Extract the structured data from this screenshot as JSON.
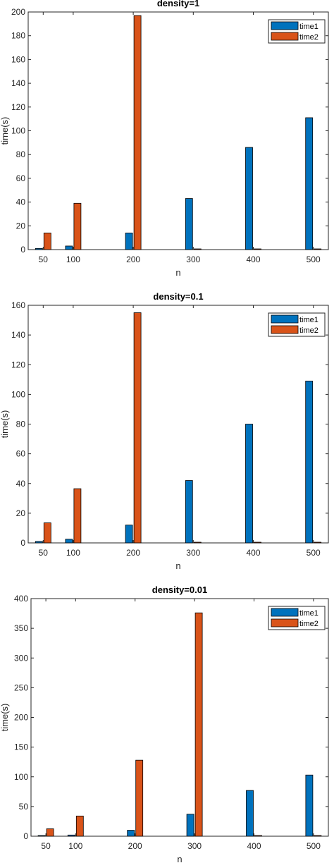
{
  "chart_data": [
    {
      "type": "bar",
      "title": "density=1",
      "xlabel": "n",
      "ylabel": "time(s)",
      "x": [
        50,
        100,
        200,
        300,
        400,
        500
      ],
      "categories": [
        "50",
        "100",
        "200",
        "300",
        "400",
        "500"
      ],
      "xlim": [
        25,
        525
      ],
      "ylim": [
        0,
        200
      ],
      "yticks": [
        0,
        20,
        40,
        60,
        80,
        100,
        120,
        140,
        160,
        180,
        200
      ],
      "legend_position": "top-right",
      "series": [
        {
          "name": "time1",
          "color": "#0072BD",
          "values": [
            1,
            3,
            14,
            43,
            86,
            111
          ]
        },
        {
          "name": "time2",
          "color": "#D95319",
          "values": [
            14,
            39,
            197,
            0,
            0,
            0
          ]
        }
      ]
    },
    {
      "type": "bar",
      "title": "density=0.1",
      "xlabel": "n",
      "ylabel": "time(s)",
      "x": [
        50,
        100,
        200,
        300,
        400,
        500
      ],
      "categories": [
        "50",
        "100",
        "200",
        "300",
        "400",
        "500"
      ],
      "xlim": [
        25,
        525
      ],
      "ylim": [
        0,
        160
      ],
      "yticks": [
        0,
        20,
        40,
        60,
        80,
        100,
        120,
        140,
        160
      ],
      "legend_position": "top-right",
      "series": [
        {
          "name": "time1",
          "color": "#0072BD",
          "values": [
            1,
            2.5,
            12,
            42,
            80,
            109
          ]
        },
        {
          "name": "time2",
          "color": "#D95319",
          "values": [
            13.5,
            36.5,
            155,
            0,
            0,
            0
          ]
        }
      ]
    },
    {
      "type": "bar",
      "title": "density=0.01",
      "xlabel": "n",
      "ylabel": "time(s)",
      "x": [
        50,
        100,
        200,
        300,
        400,
        500
      ],
      "categories": [
        "50",
        "100",
        "200",
        "300",
        "400",
        "500"
      ],
      "xlim": [
        25,
        525
      ],
      "ylim": [
        0,
        400
      ],
      "yticks": [
        0,
        50,
        100,
        150,
        200,
        250,
        300,
        350,
        400
      ],
      "legend_position": "top-right",
      "series": [
        {
          "name": "time1",
          "color": "#0072BD",
          "values": [
            1,
            2,
            10,
            37,
            77,
            103
          ]
        },
        {
          "name": "time2",
          "color": "#D95319",
          "values": [
            12.5,
            34,
            128,
            376,
            0,
            0
          ]
        }
      ]
    }
  ]
}
